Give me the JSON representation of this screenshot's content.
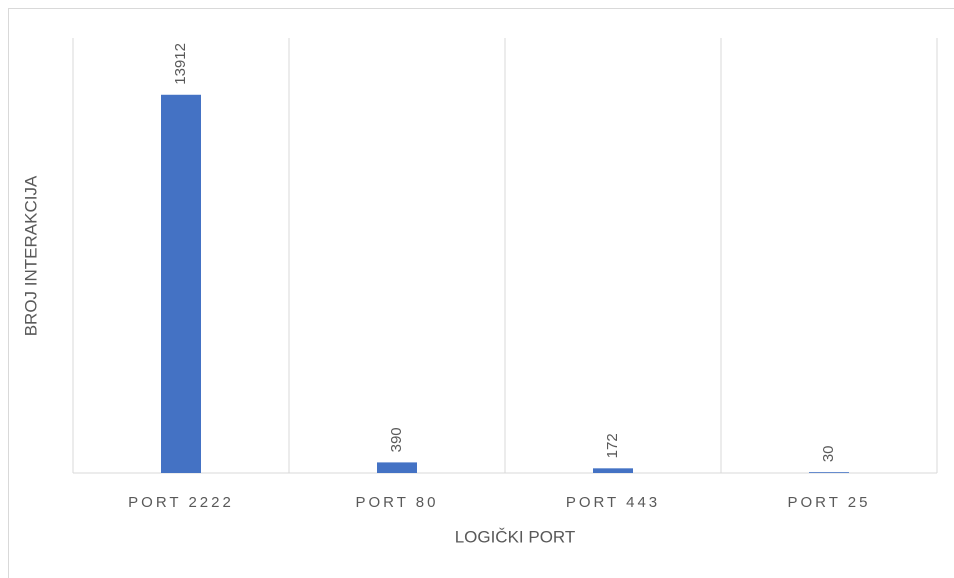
{
  "chart_data": {
    "type": "bar",
    "categories": [
      "PORT 2222",
      "PORT 80",
      "PORT 443",
      "PORT 25"
    ],
    "values": [
      13912,
      390,
      172,
      30
    ],
    "color": "#4472c4",
    "xlabel": "LOGIČKI PORT",
    "ylabel": "BROJ INTERAKCIJA",
    "ylim": [
      0,
      16000
    ],
    "grid": true
  }
}
